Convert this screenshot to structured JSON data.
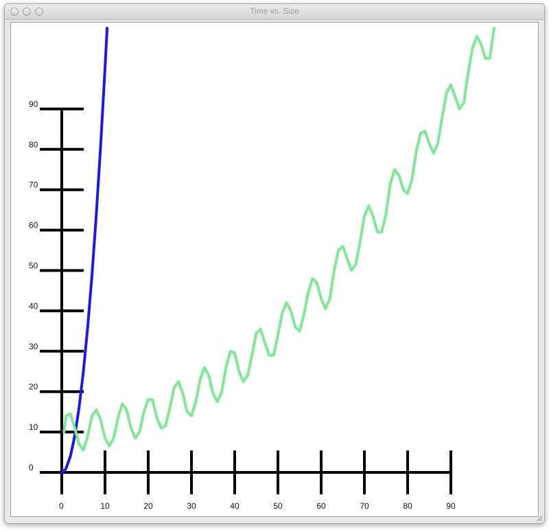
{
  "window": {
    "title": "Time vs. Size"
  },
  "colors": {
    "axis": "#000000",
    "series_fast": "#1f17e6",
    "series_slow": "#7fe895"
  },
  "chart_data": {
    "type": "line",
    "title": "",
    "xlabel": "",
    "ylabel": "",
    "xlim": [
      0,
      100
    ],
    "ylim": [
      -5,
      110
    ],
    "x_ticks": [
      0,
      10,
      20,
      30,
      40,
      50,
      60,
      70,
      80,
      90
    ],
    "y_ticks": [
      0,
      10,
      20,
      30,
      40,
      50,
      60,
      70,
      80,
      90
    ],
    "grid": false,
    "legend": "none",
    "series": [
      {
        "color": "#1f17e6",
        "x": [
          0,
          0.5,
          1,
          2,
          3,
          4,
          5,
          6,
          7,
          8,
          9,
          10,
          10.5
        ],
        "y": [
          0,
          0.3,
          1,
          4,
          9,
          16,
          25,
          36,
          49,
          64,
          81,
          100,
          110
        ]
      },
      {
        "color": "#7fe895",
        "x": [
          0.5,
          1,
          2,
          3,
          4,
          5,
          6,
          7,
          8,
          9,
          10,
          11,
          12,
          13,
          14,
          15,
          16,
          17,
          18,
          19,
          20,
          21,
          22,
          23,
          24,
          25,
          26,
          27,
          28,
          29,
          30,
          31,
          32,
          33,
          34,
          35,
          36,
          37,
          38,
          39,
          40,
          41,
          42,
          43,
          44,
          45,
          46,
          47,
          48,
          49,
          50,
          51,
          52,
          53,
          54,
          55,
          56,
          57,
          58,
          59,
          60,
          61,
          62,
          63,
          64,
          65,
          66,
          67,
          68,
          69,
          70,
          71,
          72,
          73,
          74,
          75,
          76,
          77,
          78,
          79,
          80,
          81,
          82,
          83,
          84,
          85,
          86,
          87,
          88,
          89,
          90,
          91,
          92,
          93,
          94,
          95,
          96,
          97,
          98,
          99,
          100
        ],
        "y": [
          10,
          14,
          14.5,
          11,
          7,
          5.5,
          9,
          14,
          15.5,
          13,
          8.5,
          6.5,
          8.5,
          13.5,
          17,
          15.5,
          11,
          8.5,
          10,
          15,
          18,
          18,
          13.5,
          11,
          11.5,
          16,
          21,
          22.5,
          19.5,
          15,
          14,
          17.5,
          23,
          26,
          24,
          19.5,
          17.5,
          20,
          26,
          30,
          29.5,
          25,
          22.5,
          24,
          29,
          34.5,
          35.5,
          32,
          29,
          29,
          34,
          39.5,
          42,
          40,
          36,
          35,
          39,
          44.5,
          48,
          47,
          43,
          40.5,
          43,
          50,
          55,
          56,
          53,
          50,
          51.5,
          57,
          63.5,
          66,
          63.5,
          59.5,
          59.5,
          64,
          71.5,
          75,
          73.5,
          70,
          69,
          72.5,
          79.5,
          84,
          84.5,
          81.5,
          79,
          81.5,
          88,
          94,
          96,
          93,
          90,
          91.5,
          99,
          105,
          108,
          106,
          102.5,
          102.5,
          110
        ]
      }
    ]
  }
}
